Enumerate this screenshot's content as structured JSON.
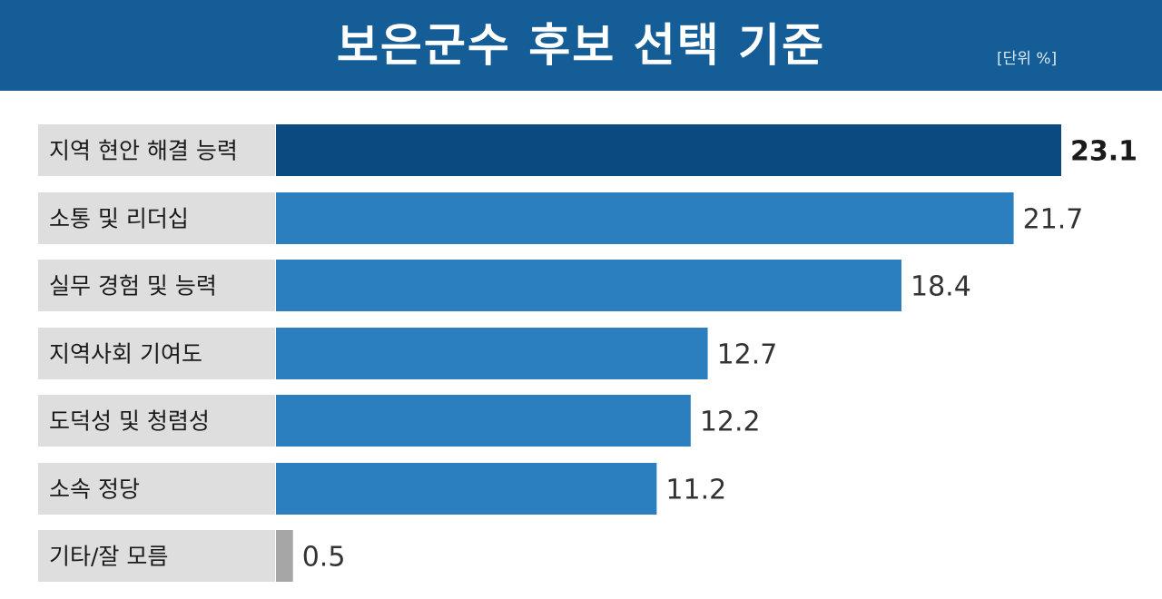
{
  "title": "보은군수 후보 선택 기준",
  "unit": "[단위 %]",
  "colors": {
    "header": "#145d97",
    "bar_highlight": "#0b4a80",
    "bar": "#2c7fbf",
    "bar_minor": "#a6a6a6",
    "label_bg": "#dedede"
  },
  "chart_data": {
    "type": "bar",
    "orientation": "horizontal",
    "categories": [
      "지역 현안 해결 능력",
      "소통 및 리더십",
      "실무 경험 및 능력",
      "지역사회 기여도",
      "도덕성 및 청렴성",
      "소속 정당",
      "기타/잘 모름"
    ],
    "values": [
      23.1,
      21.7,
      18.4,
      12.7,
      12.2,
      11.2,
      0.5
    ],
    "value_labels": [
      "23.1",
      "21.7",
      "18.4",
      "12.7",
      "12.2",
      "11.2",
      "0.5"
    ],
    "title": "보은군수 후보 선택 기준",
    "xlabel": "",
    "ylabel": "",
    "xlim": [
      0,
      23.1
    ],
    "grid": false,
    "legend": "none"
  }
}
